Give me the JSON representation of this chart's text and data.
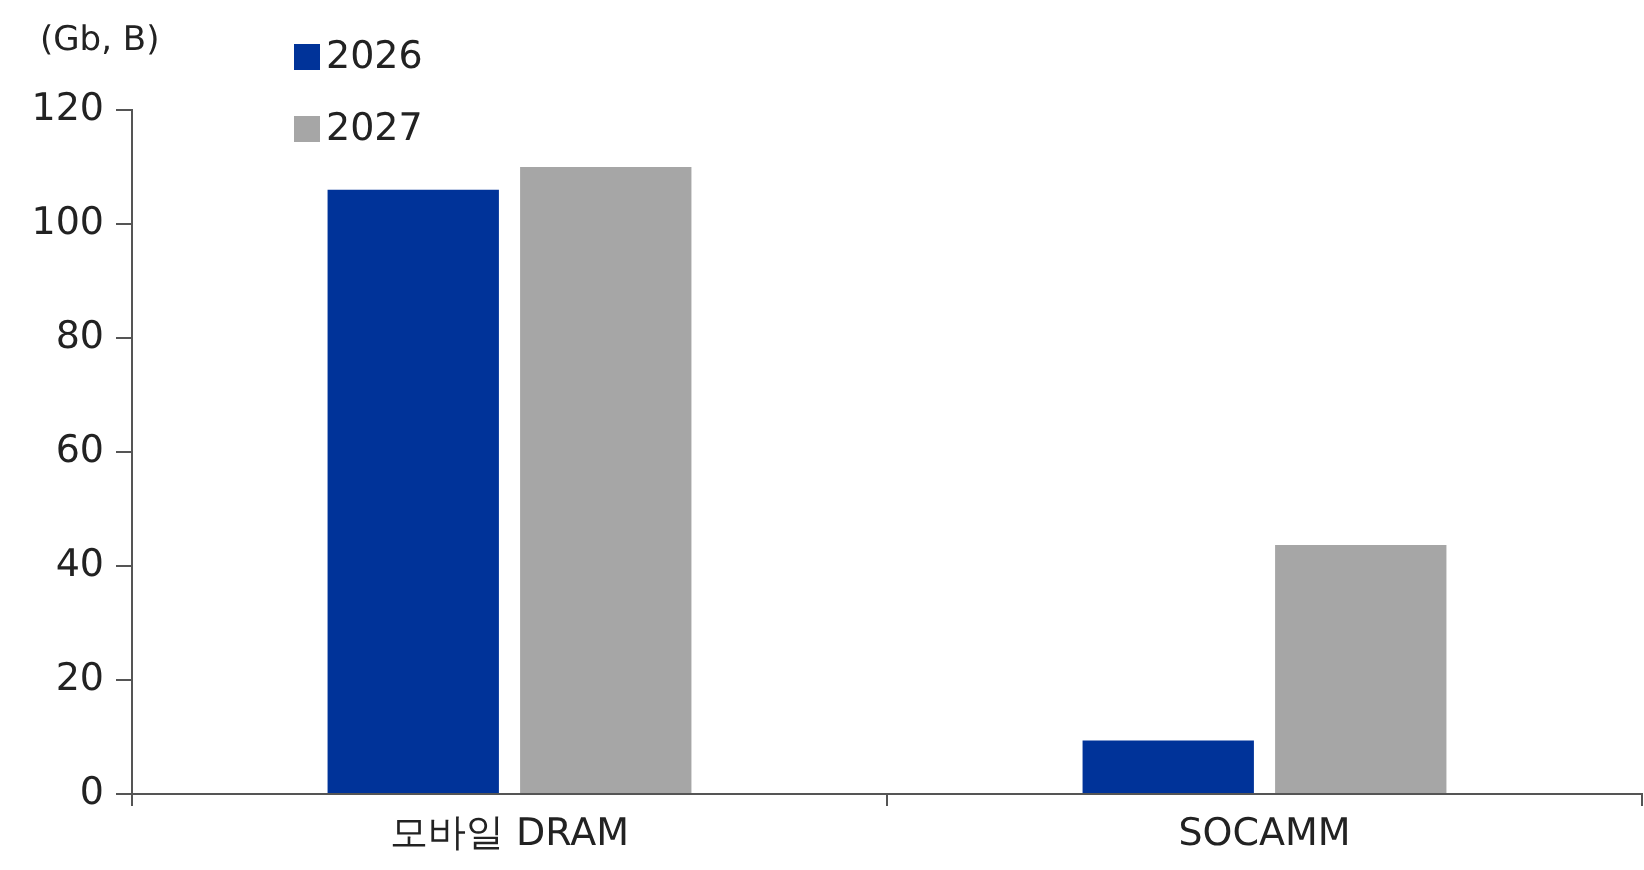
{
  "chart_data": {
    "type": "bar",
    "ylabel": "(Gb, B)",
    "categories": [
      "모바일 DRAM",
      "SOCAMM"
    ],
    "series": [
      {
        "name": "2026",
        "color": "#003399",
        "values": [
          106,
          9.4
        ]
      },
      {
        "name": "2027",
        "color": "#a6a6a6",
        "values": [
          110,
          43.7
        ]
      }
    ],
    "ylim": [
      0,
      120
    ],
    "yticks": [
      0,
      20,
      40,
      60,
      80,
      100,
      120
    ],
    "grid": false,
    "legend": "top left"
  }
}
